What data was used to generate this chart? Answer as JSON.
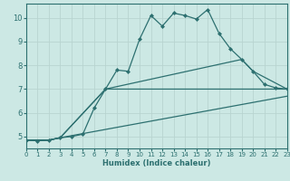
{
  "xlabel": "Humidex (Indice chaleur)",
  "background_color": "#cce8e4",
  "plot_bg_color": "#cce8e4",
  "axis_band_color": "#b0ccc8",
  "grid_color": "#b8d4d0",
  "line_color": "#2d7070",
  "spine_color": "#2d7070",
  "xlim": [
    0,
    23
  ],
  "ylim": [
    4.5,
    10.6
  ],
  "yticks": [
    5,
    6,
    7,
    8,
    9,
    10
  ],
  "xticks": [
    0,
    1,
    2,
    3,
    4,
    5,
    6,
    7,
    8,
    9,
    10,
    11,
    12,
    13,
    14,
    15,
    16,
    17,
    18,
    19,
    20,
    21,
    22,
    23
  ],
  "line_main": {
    "x": [
      0,
      1,
      2,
      3,
      4,
      5,
      6,
      7,
      8,
      9,
      10,
      11,
      12,
      13,
      14,
      15,
      16,
      17,
      18,
      19,
      20,
      21,
      22,
      23
    ],
    "y": [
      4.85,
      4.82,
      4.85,
      4.95,
      5.0,
      5.1,
      6.2,
      7.0,
      7.8,
      7.75,
      9.1,
      10.1,
      9.65,
      10.2,
      10.1,
      9.95,
      10.35,
      9.35,
      8.7,
      8.25,
      7.75,
      7.2,
      7.05,
      7.0
    ]
  },
  "line2": {
    "x": [
      0,
      2,
      3,
      7,
      19,
      20,
      23
    ],
    "y": [
      4.85,
      4.85,
      4.95,
      7.0,
      8.25,
      7.75,
      7.0
    ]
  },
  "line3": {
    "x": [
      0,
      2,
      3,
      7,
      23
    ],
    "y": [
      4.85,
      4.85,
      4.95,
      7.0,
      7.0
    ]
  },
  "line4": {
    "x": [
      0,
      2,
      3,
      23
    ],
    "y": [
      4.85,
      4.85,
      4.95,
      6.7
    ]
  }
}
